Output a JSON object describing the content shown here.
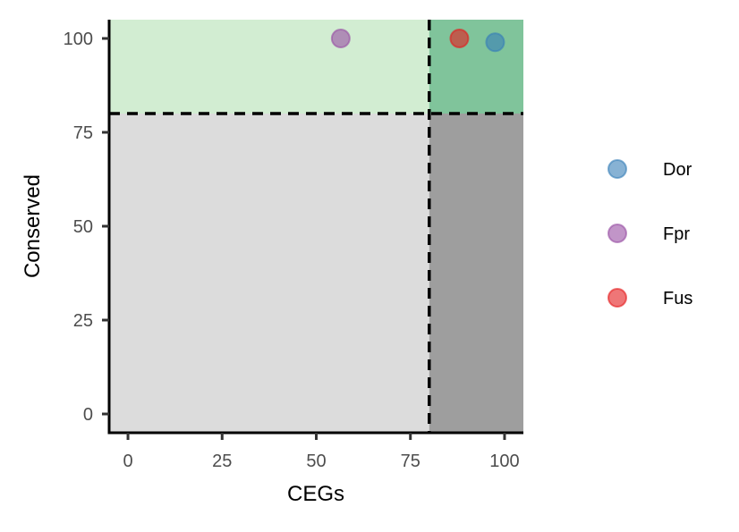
{
  "chart_data": {
    "type": "scatter",
    "title": "",
    "xlabel": "CEGs",
    "ylabel": "Conserved",
    "xlim": [
      -5,
      105
    ],
    "ylim": [
      -5,
      105
    ],
    "x_ticks": [
      0,
      25,
      50,
      75,
      100
    ],
    "y_ticks": [
      0,
      25,
      50,
      75,
      100
    ],
    "x_tick_labels": [
      "0",
      "25",
      "50",
      "75",
      "100"
    ],
    "y_tick_labels": [
      "0",
      "25",
      "50",
      "75",
      "100"
    ],
    "thresholds": {
      "x": 80,
      "y": 80
    },
    "regions": [
      {
        "x": [
          -5,
          80
        ],
        "y": [
          -5,
          80
        ],
        "color": "#dcdcdc"
      },
      {
        "x": [
          80,
          105
        ],
        "y": [
          -5,
          80
        ],
        "color": "#9e9e9e"
      },
      {
        "x": [
          -5,
          80
        ],
        "y": [
          80,
          105
        ],
        "color": "#d2edd2"
      },
      {
        "x": [
          80,
          105
        ],
        "y": [
          80,
          105
        ],
        "color": "#80c49b"
      }
    ],
    "grid": false,
    "legend_position": "right",
    "series": [
      {
        "name": "Dor",
        "color": "#377eb8",
        "points": [
          {
            "x": 97.5,
            "y": 99
          }
        ]
      },
      {
        "name": "Fpr",
        "color": "#984ea3",
        "points": [
          {
            "x": 56.5,
            "y": 100
          }
        ]
      },
      {
        "name": "Fus",
        "color": "#e41a1c",
        "points": [
          {
            "x": 88,
            "y": 100
          }
        ]
      }
    ]
  }
}
